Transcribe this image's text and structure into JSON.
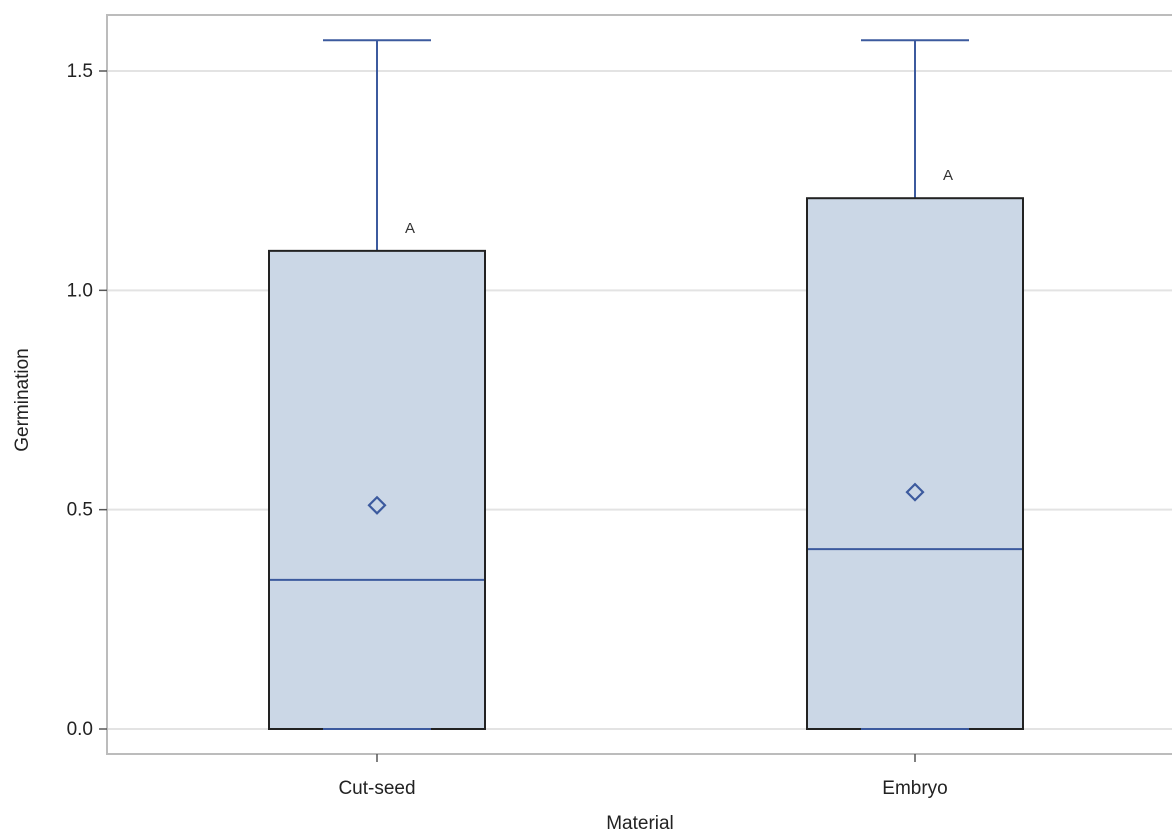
{
  "chart_data": {
    "type": "box",
    "xlabel": "Material",
    "ylabel": "Germination",
    "ylim": [
      -0.06,
      1.62
    ],
    "yticks": [
      0.0,
      0.5,
      1.0,
      1.5
    ],
    "ytick_labels": [
      "0.0",
      "0.5",
      "1.0",
      "1.5"
    ],
    "grid": "horizontal",
    "categories": [
      "Cut-seed",
      "Embryo"
    ],
    "boxes": [
      {
        "category": "Cut-seed",
        "min": 0.0,
        "q1": 0.0,
        "median": 0.34,
        "q3": 1.09,
        "max": 1.57,
        "mean": 0.51,
        "letter": "A"
      },
      {
        "category": "Embryo",
        "min": 0.0,
        "q1": 0.0,
        "median": 0.41,
        "q3": 1.21,
        "max": 1.57,
        "mean": 0.54,
        "letter": "A"
      }
    ],
    "colors": {
      "box_fill": "#cbd7e6",
      "box_outline": "#222222",
      "whisker": "#3c5a9e",
      "median": "#3c5a9e",
      "mean_marker": "#3c5a9e",
      "grid": "#e3e3e3",
      "frame": "#bcbcbc"
    }
  }
}
